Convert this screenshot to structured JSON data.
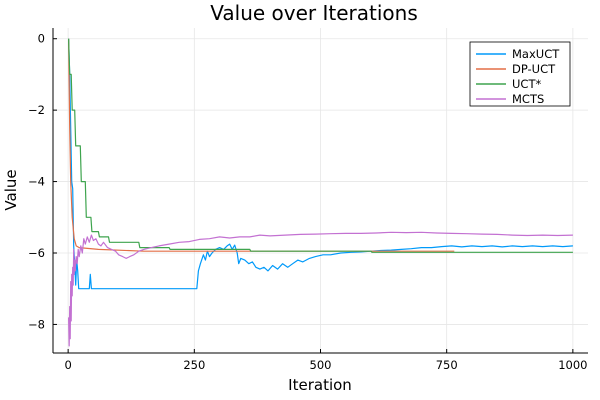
{
  "chart_data": {
    "type": "line",
    "title": "Value over Iterations",
    "xlabel": "Iteration",
    "ylabel": "Value",
    "xlim": [
      -30,
      1030
    ],
    "ylim": [
      -8.8,
      0.3
    ],
    "xticks": [
      0,
      250,
      500,
      750,
      1000
    ],
    "xtick_labels": [
      "0",
      "250",
      "500",
      "750",
      "1000"
    ],
    "yticks": [
      0,
      -2,
      -4,
      -6,
      -8
    ],
    "ytick_labels": [
      "0",
      "−2",
      "−4",
      "−6",
      "−8"
    ],
    "grid": true,
    "legend_position": "top-right",
    "series": [
      {
        "name": "MaxUCT",
        "color": "#009AFA",
        "points": [
          [
            1,
            0
          ],
          [
            3,
            -1
          ],
          [
            5,
            -2.5
          ],
          [
            7,
            -4
          ],
          [
            9,
            -4.2
          ],
          [
            11,
            -5.8
          ],
          [
            13,
            -6.3
          ],
          [
            15,
            -6.9
          ],
          [
            17,
            -6.2
          ],
          [
            19,
            -6.5
          ],
          [
            21,
            -7
          ],
          [
            42,
            -7
          ],
          [
            44,
            -6.6
          ],
          [
            46,
            -7
          ],
          [
            255,
            -7
          ],
          [
            258,
            -6.5
          ],
          [
            262,
            -6.3
          ],
          [
            268,
            -6.05
          ],
          [
            272,
            -6.2
          ],
          [
            276,
            -5.95
          ],
          [
            280,
            -6.1
          ],
          [
            285,
            -6.0
          ],
          [
            292,
            -5.9
          ],
          [
            300,
            -5.85
          ],
          [
            308,
            -5.9
          ],
          [
            315,
            -5.8
          ],
          [
            320,
            -5.75
          ],
          [
            325,
            -5.9
          ],
          [
            330,
            -5.78
          ],
          [
            335,
            -6.0
          ],
          [
            338,
            -6.3
          ],
          [
            342,
            -6.15
          ],
          [
            350,
            -6.2
          ],
          [
            358,
            -6.3
          ],
          [
            365,
            -6.25
          ],
          [
            372,
            -6.4
          ],
          [
            380,
            -6.45
          ],
          [
            388,
            -6.4
          ],
          [
            396,
            -6.5
          ],
          [
            405,
            -6.35
          ],
          [
            415,
            -6.45
          ],
          [
            425,
            -6.3
          ],
          [
            435,
            -6.4
          ],
          [
            445,
            -6.3
          ],
          [
            455,
            -6.2
          ],
          [
            465,
            -6.25
          ],
          [
            478,
            -6.15
          ],
          [
            490,
            -6.1
          ],
          [
            505,
            -6.05
          ],
          [
            520,
            -6.05
          ],
          [
            540,
            -6.0
          ],
          [
            560,
            -5.98
          ],
          [
            580,
            -5.97
          ],
          [
            600,
            -5.95
          ],
          [
            620,
            -5.93
          ],
          [
            640,
            -5.92
          ],
          [
            660,
            -5.9
          ],
          [
            680,
            -5.88
          ],
          [
            700,
            -5.85
          ],
          [
            720,
            -5.85
          ],
          [
            740,
            -5.82
          ],
          [
            760,
            -5.8
          ],
          [
            780,
            -5.83
          ],
          [
            800,
            -5.8
          ],
          [
            820,
            -5.82
          ],
          [
            840,
            -5.8
          ],
          [
            860,
            -5.83
          ],
          [
            880,
            -5.8
          ],
          [
            900,
            -5.82
          ],
          [
            920,
            -5.8
          ],
          [
            940,
            -5.82
          ],
          [
            960,
            -5.8
          ],
          [
            980,
            -5.82
          ],
          [
            1000,
            -5.8
          ]
        ]
      },
      {
        "name": "DP-UCT",
        "color": "#E36F47",
        "points": [
          [
            1,
            0
          ],
          [
            3,
            -2.5
          ],
          [
            5,
            -4
          ],
          [
            8,
            -5
          ],
          [
            12,
            -5.6
          ],
          [
            16,
            -5.8
          ],
          [
            22,
            -5.85
          ],
          [
            60,
            -5.9
          ],
          [
            150,
            -5.95
          ],
          [
            200,
            -5.95
          ],
          [
            300,
            -5.95
          ],
          [
            400,
            -5.95
          ],
          [
            500,
            -5.95
          ],
          [
            600,
            -5.95
          ],
          [
            700,
            -5.95
          ],
          [
            765,
            -5.95
          ]
        ]
      },
      {
        "name": "UCT*",
        "color": "#3EA44E",
        "points": [
          [
            1,
            0
          ],
          [
            3,
            -1
          ],
          [
            6,
            -1
          ],
          [
            8,
            -2
          ],
          [
            13,
            -2
          ],
          [
            15,
            -3
          ],
          [
            24,
            -3
          ],
          [
            26,
            -4
          ],
          [
            34,
            -4
          ],
          [
            36,
            -5
          ],
          [
            45,
            -5
          ],
          [
            47,
            -5.4
          ],
          [
            60,
            -5.4
          ],
          [
            62,
            -5.55
          ],
          [
            80,
            -5.55
          ],
          [
            82,
            -5.7
          ],
          [
            140,
            -5.7
          ],
          [
            142,
            -5.85
          ],
          [
            200,
            -5.85
          ],
          [
            202,
            -5.9
          ],
          [
            360,
            -5.9
          ],
          [
            362,
            -5.95
          ],
          [
            600,
            -5.95
          ],
          [
            602,
            -5.98
          ],
          [
            1000,
            -5.98
          ]
        ]
      },
      {
        "name": "MCTS",
        "color": "#C371D2",
        "points": [
          [
            1,
            -7.8
          ],
          [
            2,
            -8.6
          ],
          [
            3,
            -7.5
          ],
          [
            4,
            -8.4
          ],
          [
            5,
            -6.8
          ],
          [
            6,
            -7.9
          ],
          [
            7,
            -6.6
          ],
          [
            8,
            -7.2
          ],
          [
            9,
            -6.4
          ],
          [
            10,
            -6.9
          ],
          [
            11,
            -5.9
          ],
          [
            12,
            -6.6
          ],
          [
            13,
            -6.2
          ],
          [
            14,
            -6.5
          ],
          [
            16,
            -6.1
          ],
          [
            18,
            -6.3
          ],
          [
            20,
            -5.9
          ],
          [
            22,
            -6.1
          ],
          [
            25,
            -5.8
          ],
          [
            28,
            -6.0
          ],
          [
            31,
            -5.6
          ],
          [
            34,
            -5.75
          ],
          [
            38,
            -5.55
          ],
          [
            42,
            -5.7
          ],
          [
            46,
            -5.5
          ],
          [
            50,
            -5.65
          ],
          [
            55,
            -5.6
          ],
          [
            60,
            -5.75
          ],
          [
            65,
            -5.8
          ],
          [
            70,
            -5.7
          ],
          [
            78,
            -5.85
          ],
          [
            86,
            -5.9
          ],
          [
            94,
            -5.95
          ],
          [
            100,
            -6.05
          ],
          [
            108,
            -6.1
          ],
          [
            115,
            -6.15
          ],
          [
            122,
            -6.1
          ],
          [
            130,
            -6.05
          ],
          [
            140,
            -5.95
          ],
          [
            150,
            -5.9
          ],
          [
            165,
            -5.85
          ],
          [
            180,
            -5.8
          ],
          [
            200,
            -5.75
          ],
          [
            220,
            -5.7
          ],
          [
            240,
            -5.68
          ],
          [
            260,
            -5.62
          ],
          [
            280,
            -5.6
          ],
          [
            300,
            -5.55
          ],
          [
            320,
            -5.58
          ],
          [
            340,
            -5.55
          ],
          [
            360,
            -5.55
          ],
          [
            380,
            -5.5
          ],
          [
            400,
            -5.52
          ],
          [
            430,
            -5.5
          ],
          [
            460,
            -5.48
          ],
          [
            490,
            -5.47
          ],
          [
            520,
            -5.46
          ],
          [
            550,
            -5.45
          ],
          [
            580,
            -5.45
          ],
          [
            610,
            -5.44
          ],
          [
            640,
            -5.42
          ],
          [
            670,
            -5.43
          ],
          [
            700,
            -5.42
          ],
          [
            730,
            -5.44
          ],
          [
            760,
            -5.45
          ],
          [
            790,
            -5.46
          ],
          [
            820,
            -5.47
          ],
          [
            850,
            -5.48
          ],
          [
            880,
            -5.5
          ],
          [
            910,
            -5.51
          ],
          [
            940,
            -5.5
          ],
          [
            970,
            -5.51
          ],
          [
            1000,
            -5.5
          ]
        ]
      }
    ]
  }
}
